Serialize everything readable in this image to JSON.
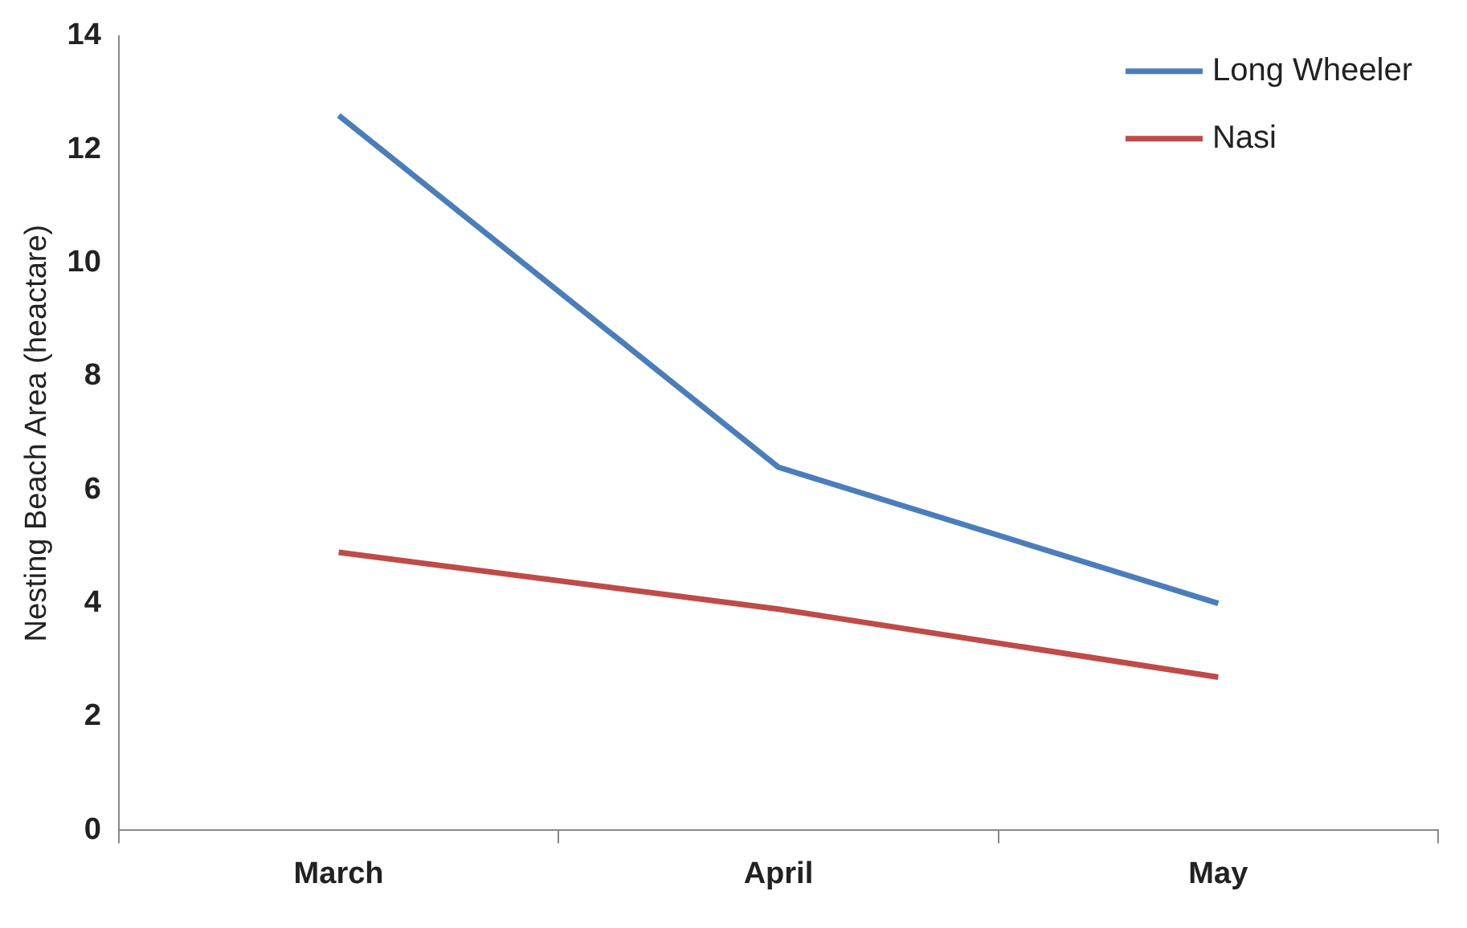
{
  "chart_data": {
    "type": "line",
    "ylabel": "Nesting Beach Area (heactare)",
    "categories": [
      "March",
      "April",
      "May"
    ],
    "series": [
      {
        "name": "Long Wheeler",
        "color": "#4a7ebb",
        "values": [
          12.6,
          6.4,
          4.0
        ]
      },
      {
        "name": "Nasi",
        "color": "#be4b48",
        "values": [
          4.9,
          3.9,
          2.7
        ]
      }
    ],
    "ylim": [
      0,
      14
    ],
    "yticks": [
      0,
      2,
      4,
      6,
      8,
      10,
      12,
      14
    ],
    "grid": false,
    "legend": "top right",
    "marker": "none",
    "line_style": "solid"
  }
}
